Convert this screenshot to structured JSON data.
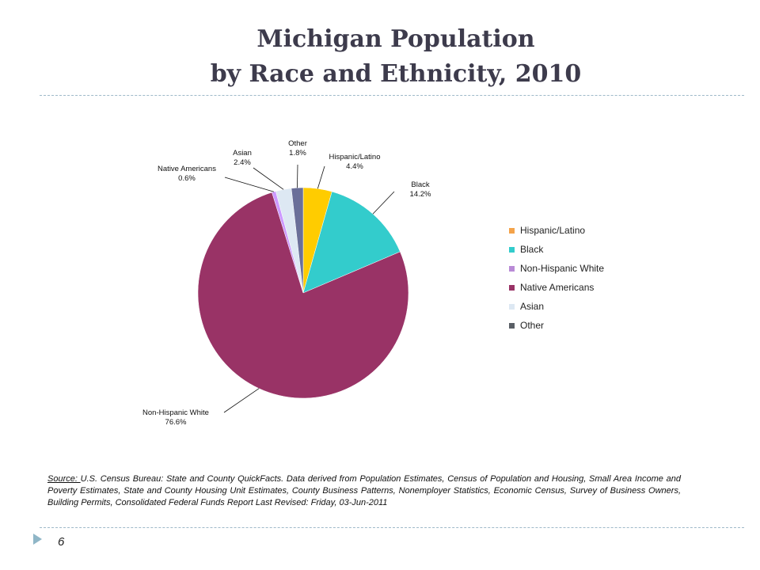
{
  "slide": {
    "title_line1": "Michigan Population",
    "title_line2": "by Race and Ethnicity, 2010",
    "page_number": "6",
    "source_prefix": "Source: ",
    "source_text": "U.S. Census Bureau: State and County QuickFacts. Data derived from Population Estimates, Census of Population and Housing, Small Area Income and Poverty Estimates, State and County Housing Unit Estimates, County Business Patterns, Nonemployer Statistics, Economic Census, Survey of Business Owners, Building Permits, Consolidated Federal Funds Report Last Revised: Friday, 03-Jun-2011"
  },
  "chart_data": {
    "type": "pie",
    "title": "",
    "slices": [
      {
        "name": "Hispanic/Latino",
        "value": 4.4,
        "label": "4.4%",
        "color": "#ffcc00"
      },
      {
        "name": "Black",
        "value": 14.2,
        "label": "14.2%",
        "color": "#33cccc"
      },
      {
        "name": "Non-Hispanic White",
        "value": 76.6,
        "label": "76.6%",
        "color": "#993366"
      },
      {
        "name": "Native Americans",
        "value": 0.6,
        "label": "0.6%",
        "color": "#cc99ff"
      },
      {
        "name": "Asian",
        "value": 2.4,
        "label": "2.4%",
        "color": "#dde8f3"
      },
      {
        "name": "Other",
        "value": 1.8,
        "label": "1.8%",
        "color": "#6a6f99"
      }
    ],
    "legend": [
      {
        "label": "Hispanic/Latino",
        "color": "#f4a34a"
      },
      {
        "label": "Black",
        "color": "#33cccc"
      },
      {
        "label": "Non-Hispanic White",
        "color": "#b98ad6"
      },
      {
        "label": "Native Americans",
        "color": "#993366"
      },
      {
        "label": "Asian",
        "color": "#dde8f3"
      },
      {
        "label": "Other",
        "color": "#5a5f66"
      }
    ],
    "legend_position": "right"
  }
}
